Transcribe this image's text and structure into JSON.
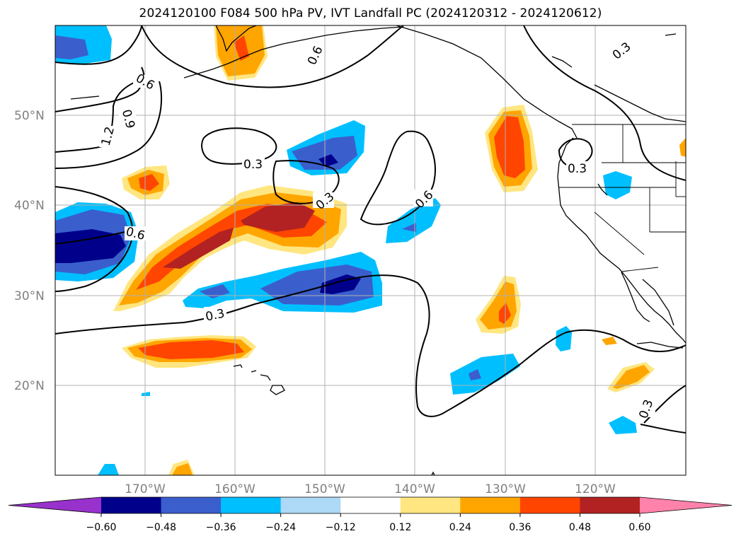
{
  "title": "2024120100 F084 500 hPa PV, IVT Landfall PC (2024120312 - 2024120612)",
  "lat_labels": [
    "50°N",
    "40°N",
    "30°N",
    "20°N"
  ],
  "lon_labels": [
    "170°W",
    "160°W",
    "150°W",
    "140°W",
    "130°W",
    "120°W"
  ],
  "contour_labels": [
    "0.6",
    "0.9",
    "1.2",
    "0.6",
    "0.3",
    "0.3",
    "0.6",
    "0.6",
    "0.3",
    "0.3",
    "0.3",
    "0.3"
  ],
  "colorbar": {
    "ticks": [
      "−0.60",
      "−0.48",
      "−0.36",
      "−0.24",
      "−0.12",
      "0.12",
      "0.24",
      "0.36",
      "0.48",
      "0.60"
    ],
    "colors": [
      "#9932cc",
      "#00008b",
      "#3a5fcd",
      "#00bfff",
      "#add8f6",
      "#ffffff",
      "#ffe680",
      "#ffa500",
      "#ff4500",
      "#b22222",
      "#ff82ab"
    ]
  },
  "map": {
    "type": "filled-contour map with contour overlay",
    "projection": "PlateCarree",
    "lon_range": [
      "-180",
      "-110"
    ],
    "lat_range": [
      "10",
      "60"
    ],
    "grid": true
  }
}
